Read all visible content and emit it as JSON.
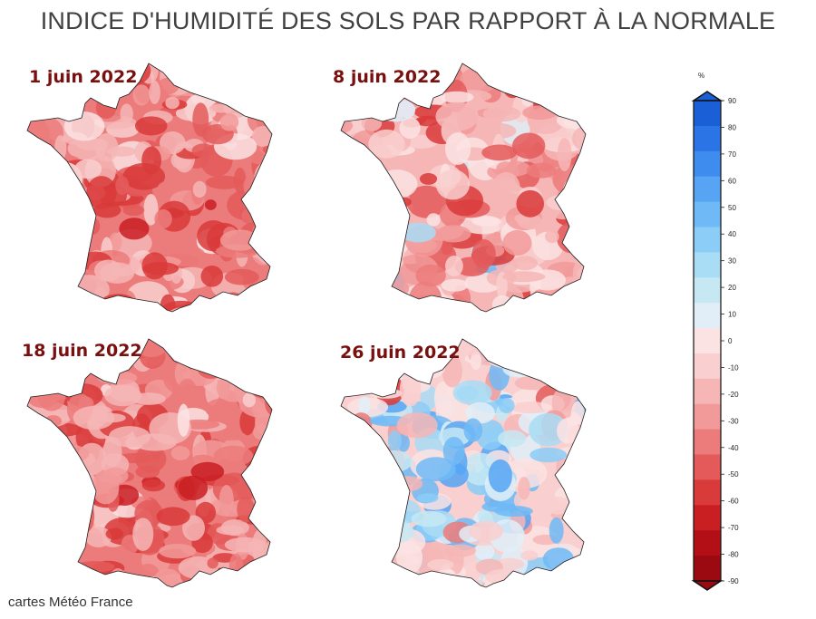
{
  "title": "INDICE D'HUMIDITÉ DES SOLS PAR RAPPORT À LA NORMALE",
  "panels": [
    {
      "date": "1 juin 2022",
      "dryness": 0.85,
      "wet": 0.0
    },
    {
      "date": "8 juin 2022",
      "dryness": 0.55,
      "wet": 0.1
    },
    {
      "date": "18 juin 2022",
      "dryness": 0.85,
      "wet": 0.0
    },
    {
      "date": "26 juin 2022",
      "dryness": 0.35,
      "wet": 0.6
    }
  ],
  "legend": {
    "unit": "%",
    "ticks": [
      "90",
      "80",
      "70",
      "60",
      "50",
      "40",
      "30",
      "20",
      "10",
      "0",
      "-10",
      "-20",
      "-30",
      "-40",
      "-50",
      "-60",
      "-70",
      "-80",
      "-90"
    ],
    "colors": [
      "#1a5fd6",
      "#2b74e6",
      "#3f8cef",
      "#56a4f3",
      "#6fbaf6",
      "#8bcdf7",
      "#a9dcf5",
      "#c6e8f3",
      "#e1eef8",
      "#fbe3e3",
      "#f9cfcf",
      "#f6b6b6",
      "#f29a9a",
      "#ec7b7b",
      "#e45a5a",
      "#d93a3a",
      "#c91f23",
      "#b30f17",
      "#9a0a10"
    ]
  },
  "credit": "cartes Météo France"
}
